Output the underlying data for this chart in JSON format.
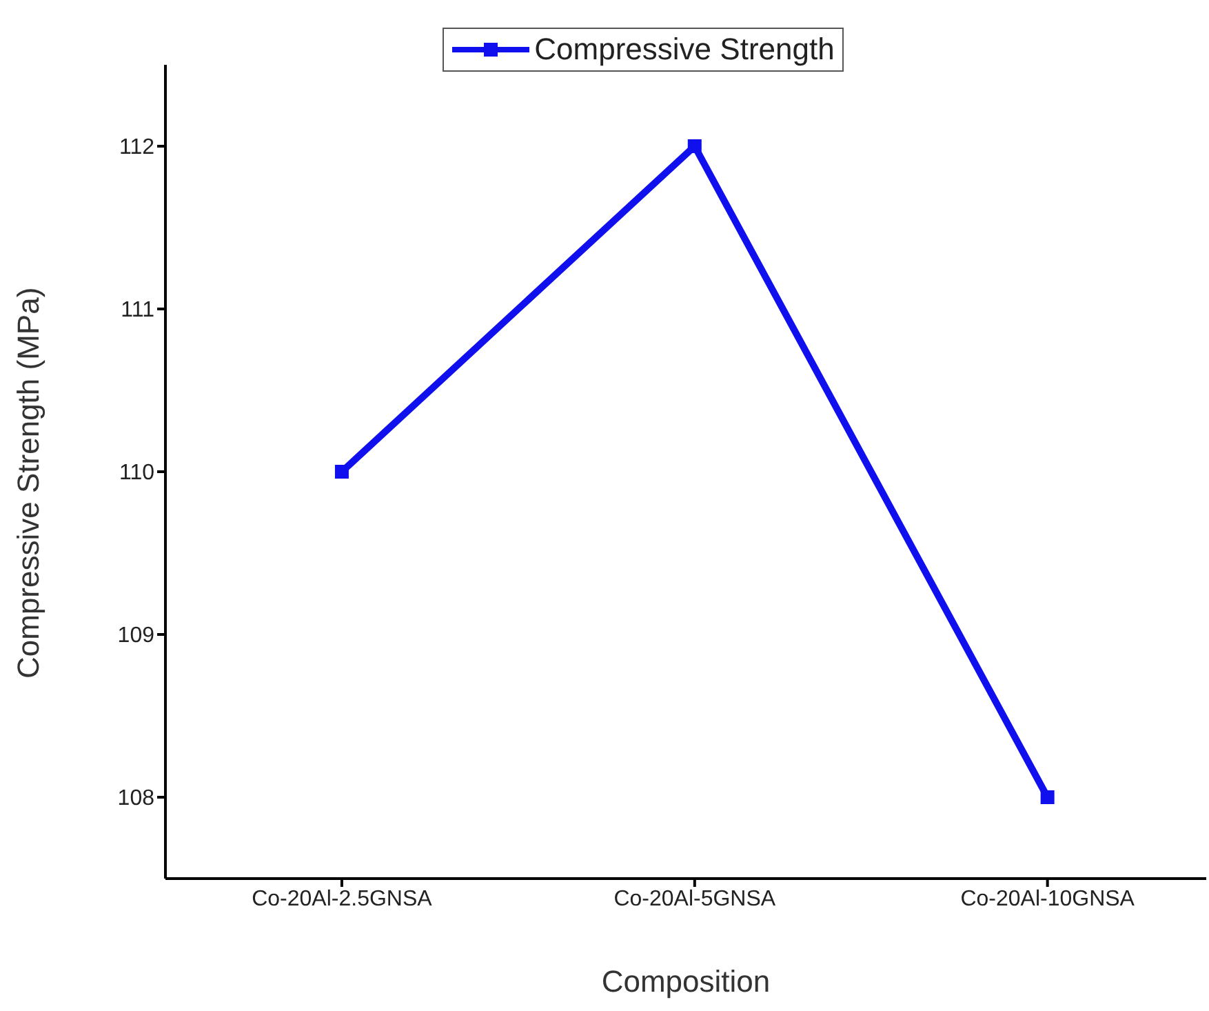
{
  "chart_data": {
    "type": "line",
    "xlabel": "Composition",
    "ylabel": "Compressive Strength (MPa)",
    "categories": [
      "Co-20Al-2.5GNSA",
      "Co-20Al-5GNSA",
      "Co-20Al-10GNSA"
    ],
    "series": [
      {
        "name": "Compressive Strength",
        "color": "#1010ee",
        "values": [
          110,
          112,
          108
        ]
      }
    ],
    "ylim": [
      107.5,
      112.5
    ],
    "yticks": [
      108,
      109,
      110,
      111,
      112
    ],
    "grid": false,
    "legend": "top",
    "marker": "square",
    "line_style": "solid"
  }
}
